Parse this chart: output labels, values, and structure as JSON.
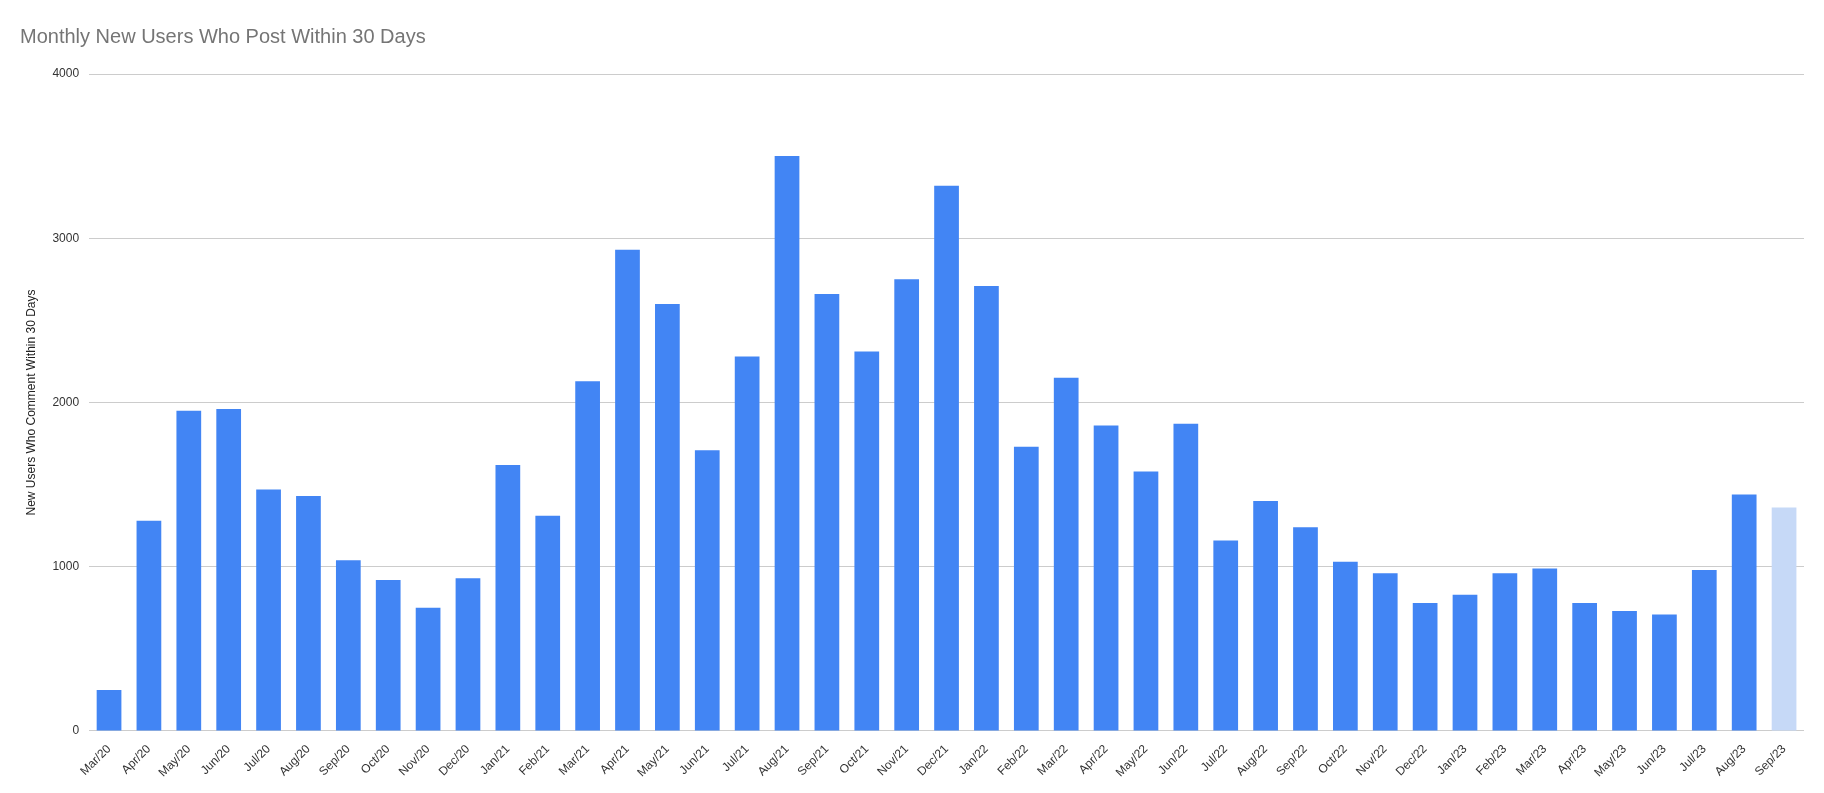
{
  "chart_data": {
    "type": "bar",
    "title": "Monthly New Users Who Post Within 30 Days",
    "ylabel": "New Users Who Comment Within 30 Days",
    "categories": [
      "Mar/20",
      "Apr/20",
      "May/20",
      "Jun/20",
      "Jul/20",
      "Aug/20",
      "Sep/20",
      "Oct/20",
      "Nov/20",
      "Dec/20",
      "Jan/21",
      "Feb/21",
      "Mar/21",
      "Apr/21",
      "May/21",
      "Jun/21",
      "Jul/21",
      "Aug/21",
      "Sep/21",
      "Oct/21",
      "Nov/21",
      "Dec/21",
      "Jan/22",
      "Feb/22",
      "Mar/22",
      "Apr/22",
      "May/22",
      "Jun/22",
      "Jul/22",
      "Aug/22",
      "Sep/22",
      "Oct/22",
      "Nov/22",
      "Dec/22",
      "Jan/23",
      "Feb/23",
      "Mar/23",
      "Apr/23",
      "May/23",
      "Jun/23",
      "Jul/23",
      "Aug/23",
      "Sep/23"
    ],
    "values": [
      250,
      1280,
      1950,
      1960,
      1470,
      1430,
      1040,
      920,
      750,
      930,
      1620,
      1310,
      2130,
      2930,
      2600,
      1710,
      2280,
      3500,
      2660,
      2310,
      2750,
      3320,
      2710,
      1730,
      2150,
      1860,
      1580,
      1870,
      1160,
      1400,
      1240,
      1030,
      960,
      780,
      830,
      960,
      990,
      780,
      730,
      710,
      980,
      1440,
      1360
    ],
    "colors": [
      "#4285f4",
      "#4285f4",
      "#4285f4",
      "#4285f4",
      "#4285f4",
      "#4285f4",
      "#4285f4",
      "#4285f4",
      "#4285f4",
      "#4285f4",
      "#4285f4",
      "#4285f4",
      "#4285f4",
      "#4285f4",
      "#4285f4",
      "#4285f4",
      "#4285f4",
      "#4285f4",
      "#4285f4",
      "#4285f4",
      "#4285f4",
      "#4285f4",
      "#4285f4",
      "#4285f4",
      "#4285f4",
      "#4285f4",
      "#4285f4",
      "#4285f4",
      "#4285f4",
      "#4285f4",
      "#4285f4",
      "#4285f4",
      "#4285f4",
      "#4285f4",
      "#4285f4",
      "#4285f4",
      "#4285f4",
      "#4285f4",
      "#4285f4",
      "#4285f4",
      "#4285f4",
      "#4285f4",
      "#c6d9f7"
    ],
    "ylim": [
      0,
      4000
    ],
    "yticks": [
      0,
      1000,
      2000,
      3000,
      4000
    ],
    "grid": "y"
  }
}
